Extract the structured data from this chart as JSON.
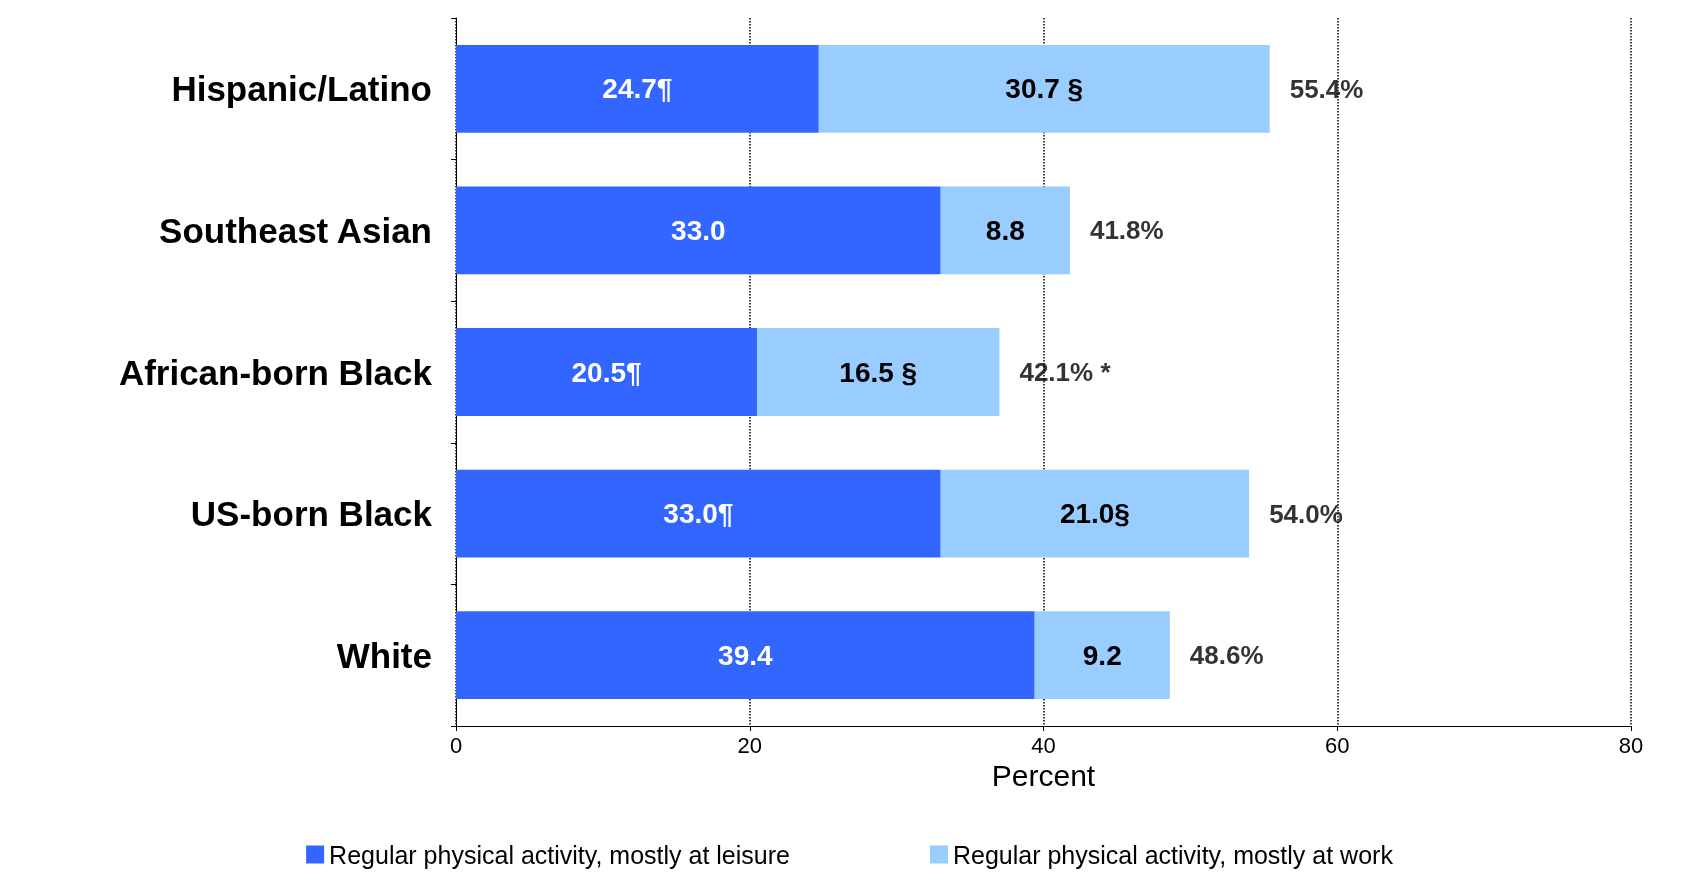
{
  "chart_data": {
    "type": "bar",
    "orientation": "horizontal",
    "stacked": true,
    "xlabel": "Percent",
    "categories": [
      "Hispanic/Latino",
      "Southeast Asian",
      "African-born Black",
      "US-born Black",
      "White"
    ],
    "series": [
      {
        "name": "Regular physical activity, mostly at leisure",
        "color": "#3366ff",
        "values": [
          24.7,
          33.0,
          20.5,
          33.0,
          39.4
        ],
        "value_labels": [
          "24.7¶",
          "33.0",
          "20.5¶",
          "33.0¶",
          "39.4"
        ]
      },
      {
        "name": "Regular physical activity, mostly at work",
        "color": "#99ccff",
        "values": [
          30.7,
          8.8,
          16.5,
          21.0,
          9.2
        ],
        "value_labels": [
          "30.7 §",
          "8.8",
          "16.5 §",
          "21.0§",
          "9.2"
        ]
      }
    ],
    "totals": [
      "55.4%",
      "41.8%",
      null,
      "54.0%",
      "48.6%"
    ],
    "annotations": [
      {
        "text": "42.1% *",
        "x": 37,
        "y": "African-born Black"
      }
    ],
    "xlim": [
      0,
      80
    ],
    "xticks": [
      0,
      20,
      40,
      60,
      80
    ],
    "grid": "x",
    "legend": "bottom"
  }
}
